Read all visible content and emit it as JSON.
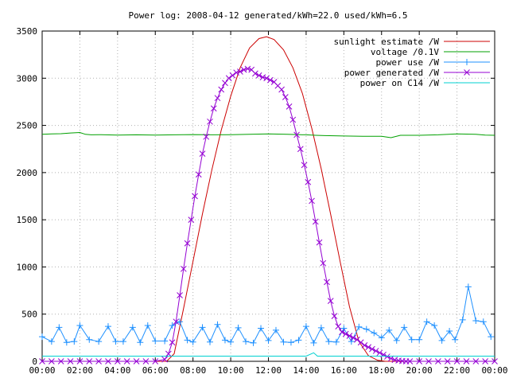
{
  "chart_data": {
    "type": "line",
    "title": "Power log: 2008-04-12 generated/kWh=22.0 used/kWh=6.5",
    "xlabel": "",
    "ylabel": "",
    "xlim": [
      0,
      24
    ],
    "ylim": [
      0,
      3500
    ],
    "x_ticks": [
      "00:00",
      "02:00",
      "04:00",
      "06:00",
      "08:00",
      "10:00",
      "12:00",
      "14:00",
      "16:00",
      "18:00",
      "20:00",
      "22:00",
      "00:00"
    ],
    "y_ticks": [
      0,
      500,
      1000,
      1500,
      2000,
      2500,
      3000,
      3500
    ],
    "grid": true,
    "legend_position": "top-right",
    "series": [
      {
        "name": "sunlight estimate /W",
        "color": "#cc0000",
        "marker": "none",
        "x": [
          0,
          6.6,
          7.0,
          7.5,
          8.0,
          8.5,
          9.0,
          9.5,
          10.0,
          10.5,
          11.0,
          11.5,
          11.9,
          12.3,
          12.8,
          13.3,
          13.8,
          14.3,
          14.8,
          15.3,
          15.8,
          16.3,
          16.8,
          17.3,
          17.8,
          18.2,
          24
        ],
        "y": [
          0,
          0,
          80,
          560,
          1060,
          1560,
          2030,
          2450,
          2810,
          3110,
          3320,
          3420,
          3440,
          3410,
          3300,
          3110,
          2840,
          2470,
          2040,
          1560,
          1060,
          580,
          210,
          60,
          10,
          0,
          0
        ]
      },
      {
        "name": "voltage /0.1V",
        "color": "#00a000",
        "marker": "none",
        "x": [
          0,
          0.5,
          1.0,
          1.5,
          2.0,
          2.3,
          2.6,
          3.0,
          4.0,
          5.0,
          6.0,
          7.0,
          8.0,
          9.0,
          10.0,
          11.0,
          12.0,
          13.0,
          14.0,
          14.5,
          15.0,
          16.0,
          17.0,
          18.0,
          18.5,
          19.0,
          20.0,
          21.0,
          22.0,
          23.0,
          23.5,
          24
        ],
        "y": [
          2405,
          2410,
          2412,
          2420,
          2425,
          2405,
          2400,
          2402,
          2398,
          2400,
          2398,
          2400,
          2403,
          2400,
          2402,
          2405,
          2410,
          2405,
          2400,
          2395,
          2392,
          2388,
          2385,
          2385,
          2370,
          2395,
          2395,
          2400,
          2410,
          2405,
          2398,
          2395
        ]
      },
      {
        "name": "power use /W",
        "color": "#1e90ff",
        "marker": "plus",
        "x": [
          0.0,
          0.5,
          0.9,
          1.3,
          1.7,
          2.0,
          2.5,
          3.0,
          3.5,
          3.9,
          4.3,
          4.8,
          5.2,
          5.6,
          6.0,
          6.5,
          6.9,
          7.3,
          7.7,
          8.0,
          8.5,
          8.9,
          9.3,
          9.7,
          10.0,
          10.4,
          10.8,
          11.2,
          11.6,
          12.0,
          12.4,
          12.8,
          13.2,
          13.6,
          14.0,
          14.4,
          14.8,
          15.2,
          15.6,
          16.0,
          16.4,
          16.8,
          17.2,
          17.6,
          18.0,
          18.4,
          18.8,
          19.2,
          19.6,
          20.0,
          20.4,
          20.8,
          21.2,
          21.6,
          21.9,
          22.3,
          22.6,
          23.0,
          23.4,
          23.8
        ],
        "y": [
          260,
          210,
          360,
          200,
          210,
          380,
          230,
          210,
          370,
          210,
          210,
          360,
          200,
          380,
          215,
          215,
          380,
          420,
          225,
          205,
          360,
          205,
          390,
          225,
          205,
          355,
          210,
          195,
          350,
          220,
          330,
          205,
          200,
          225,
          370,
          195,
          355,
          210,
          205,
          350,
          210,
          365,
          340,
          300,
          250,
          330,
          220,
          360,
          230,
          230,
          420,
          380,
          220,
          320,
          230,
          440,
          790,
          430,
          420,
          260
        ]
      },
      {
        "name": "power generated /W",
        "color": "#9400d3",
        "marker": "cross",
        "x": [
          0,
          0.5,
          1.0,
          1.5,
          2.0,
          2.5,
          3.0,
          3.5,
          4.0,
          4.5,
          5.0,
          5.5,
          6.0,
          6.5,
          6.7,
          6.9,
          7.1,
          7.3,
          7.5,
          7.7,
          7.9,
          8.1,
          8.3,
          8.5,
          8.7,
          8.9,
          9.1,
          9.3,
          9.5,
          9.7,
          9.9,
          10.1,
          10.3,
          10.5,
          10.7,
          10.9,
          11.1,
          11.3,
          11.5,
          11.7,
          11.9,
          12.1,
          12.3,
          12.5,
          12.7,
          12.9,
          13.1,
          13.3,
          13.5,
          13.7,
          13.9,
          14.1,
          14.3,
          14.5,
          14.7,
          14.9,
          15.1,
          15.3,
          15.5,
          15.7,
          15.9,
          16.1,
          16.3,
          16.5,
          16.7,
          16.9,
          17.1,
          17.3,
          17.5,
          17.7,
          17.9,
          18.1,
          18.3,
          18.5,
          18.7,
          18.9,
          19.1,
          19.3,
          19.5,
          20.0,
          20.5,
          21.0,
          21.5,
          22.0,
          22.5,
          23.0,
          23.5,
          24.0
        ],
        "y": [
          0,
          0,
          0,
          0,
          0,
          0,
          0,
          0,
          0,
          0,
          0,
          0,
          0,
          20,
          80,
          200,
          420,
          700,
          980,
          1250,
          1500,
          1750,
          1980,
          2200,
          2380,
          2540,
          2680,
          2790,
          2880,
          2950,
          3000,
          3030,
          3060,
          3070,
          3090,
          3100,
          3090,
          3050,
          3030,
          3010,
          3000,
          2980,
          2960,
          2920,
          2880,
          2800,
          2700,
          2560,
          2400,
          2250,
          2080,
          1900,
          1700,
          1480,
          1260,
          1040,
          840,
          640,
          480,
          370,
          310,
          290,
          270,
          250,
          230,
          200,
          170,
          150,
          130,
          110,
          90,
          70,
          50,
          30,
          15,
          8,
          3,
          0,
          0,
          0,
          0,
          0,
          0,
          0,
          0,
          0,
          0,
          0
        ]
      },
      {
        "name": "power on C14 /W",
        "color": "#00d0d0",
        "marker": "none",
        "x": [
          0,
          1,
          2,
          3,
          4,
          5,
          6,
          7,
          8,
          9,
          10,
          11,
          12,
          13,
          14,
          14.4,
          14.6,
          15,
          16,
          17,
          18,
          19,
          20,
          21,
          22,
          23,
          24
        ],
        "y": [
          55,
          55,
          55,
          55,
          55,
          55,
          55,
          55,
          55,
          55,
          55,
          55,
          55,
          55,
          55,
          90,
          55,
          55,
          55,
          55,
          55,
          55,
          55,
          55,
          55,
          55,
          55
        ]
      }
    ]
  }
}
